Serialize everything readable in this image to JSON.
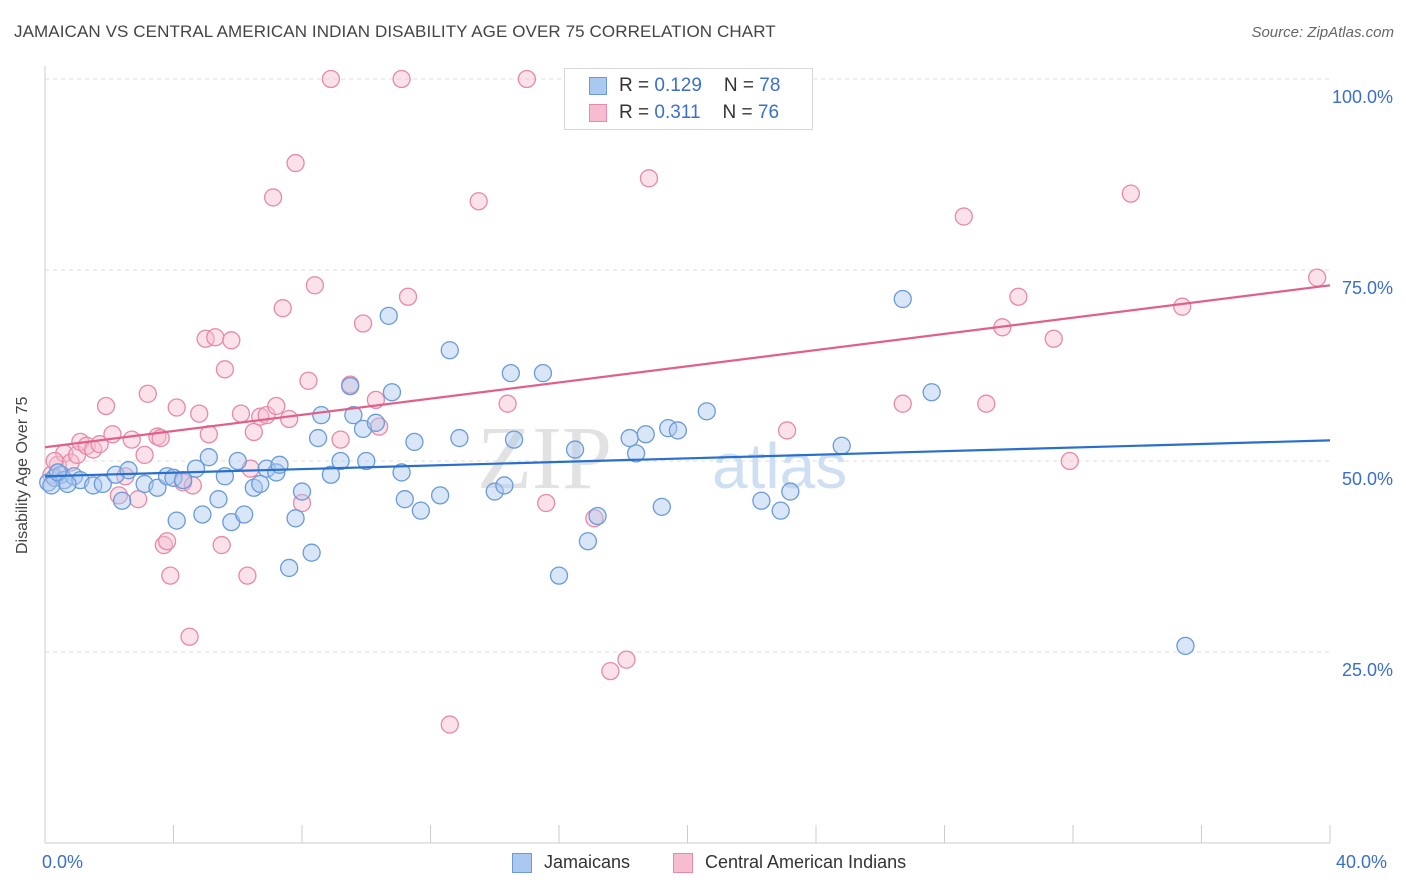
{
  "title": "JAMAICAN VS CENTRAL AMERICAN INDIAN DISABILITY AGE OVER 75 CORRELATION CHART",
  "source": "Source: ZipAtlas.com",
  "watermark": {
    "zip": "ZIP",
    "atlas": "atlas"
  },
  "legend": {
    "jam": {
      "r_label": "R = ",
      "r_value": "0.129",
      "n_label": "N = ",
      "n_value": "78"
    },
    "cai": {
      "r_label": "R = ",
      "r_value": "0.311",
      "n_label": "N = ",
      "n_value": "76"
    }
  },
  "bottom_legend": {
    "jam": "Jamaicans",
    "cai": "Central American Indians"
  },
  "colors": {
    "jam_fill": "#aac8f0",
    "jam_stroke": "#6a9bd8",
    "jam_line": "#2a6fcc",
    "cai_fill": "#f6bcd0",
    "cai_stroke": "#e68aa8",
    "cai_line": "#e0608c",
    "tick_label": "#3a6fc9",
    "grid": "#dcdcdc"
  },
  "chart_data": {
    "type": "scatter",
    "title": "JAMAICAN VS CENTRAL AMERICAN INDIAN DISABILITY AGE OVER 75 CORRELATION CHART",
    "xlabel": "",
    "ylabel": "Disability Age Over 75",
    "xlim": [
      0,
      40
    ],
    "ylim": [
      0,
      100
    ],
    "x_tick_labels": [
      "0.0%",
      "40.0%"
    ],
    "y_ticks": [
      25,
      50,
      75,
      100
    ],
    "y_tick_labels": [
      "25.0%",
      "50.0%",
      "75.0%",
      "100.0%"
    ],
    "grid": true,
    "series": [
      {
        "name": "Jamaicans",
        "r": 0.129,
        "n": 78,
        "trend": {
          "x": [
            0,
            40
          ],
          "y": [
            48.0,
            52.7
          ]
        },
        "points": [
          [
            0.1,
            47.2
          ],
          [
            0.3,
            47.8
          ],
          [
            0.5,
            48.2
          ],
          [
            0.6,
            47.5
          ],
          [
            0.9,
            48.0
          ],
          [
            1.1,
            47.5
          ],
          [
            1.5,
            46.8
          ],
          [
            1.8,
            47.0
          ],
          [
            2.2,
            48.2
          ],
          [
            2.4,
            44.8
          ],
          [
            2.6,
            48.8
          ],
          [
            3.1,
            47.0
          ],
          [
            3.5,
            46.5
          ],
          [
            3.8,
            48.0
          ],
          [
            4.0,
            47.8
          ],
          [
            4.1,
            42.2
          ],
          [
            4.3,
            47.5
          ],
          [
            4.7,
            49.0
          ],
          [
            4.9,
            43.0
          ],
          [
            5.1,
            50.5
          ],
          [
            5.4,
            45.0
          ],
          [
            5.6,
            48.0
          ],
          [
            5.8,
            42.0
          ],
          [
            6.0,
            50.0
          ],
          [
            6.2,
            43.0
          ],
          [
            6.5,
            46.5
          ],
          [
            6.7,
            47.0
          ],
          [
            6.9,
            49.0
          ],
          [
            7.2,
            48.5
          ],
          [
            7.3,
            49.5
          ],
          [
            7.6,
            36.0
          ],
          [
            7.8,
            42.5
          ],
          [
            8.0,
            46.0
          ],
          [
            8.3,
            38.0
          ],
          [
            8.5,
            53.0
          ],
          [
            8.6,
            56.0
          ],
          [
            8.9,
            48.2
          ],
          [
            9.2,
            50.0
          ],
          [
            9.5,
            59.8
          ],
          [
            9.6,
            56.0
          ],
          [
            9.9,
            54.2
          ],
          [
            10.0,
            50.0
          ],
          [
            10.3,
            55.0
          ],
          [
            10.7,
            69.0
          ],
          [
            10.8,
            59.0
          ],
          [
            11.1,
            48.5
          ],
          [
            11.2,
            45.0
          ],
          [
            11.5,
            52.5
          ],
          [
            11.7,
            43.5
          ],
          [
            12.3,
            45.5
          ],
          [
            12.6,
            64.5
          ],
          [
            12.9,
            53.0
          ],
          [
            14.0,
            46.0
          ],
          [
            14.3,
            46.8
          ],
          [
            14.5,
            61.5
          ],
          [
            14.6,
            52.8
          ],
          [
            15.5,
            61.5
          ],
          [
            16.0,
            35.0
          ],
          [
            16.5,
            51.5
          ],
          [
            16.9,
            39.5
          ],
          [
            17.2,
            42.8
          ],
          [
            18.2,
            53.0
          ],
          [
            18.4,
            51.0
          ],
          [
            18.7,
            53.5
          ],
          [
            19.2,
            44.0
          ],
          [
            19.4,
            54.3
          ],
          [
            19.7,
            54.0
          ],
          [
            20.6,
            56.5
          ],
          [
            22.3,
            44.8
          ],
          [
            22.9,
            43.5
          ],
          [
            23.2,
            46.0
          ],
          [
            24.8,
            52.0
          ],
          [
            26.7,
            71.2
          ],
          [
            27.6,
            59.0
          ],
          [
            35.5,
            25.8
          ],
          [
            0.2,
            46.8
          ],
          [
            0.4,
            48.5
          ],
          [
            0.7,
            47.0
          ]
        ]
      },
      {
        "name": "Central American Indians",
        "r": 0.311,
        "n": 76,
        "trend": {
          "x": [
            0,
            40
          ],
          "y": [
            51.8,
            73.0
          ]
        },
        "points": [
          [
            0.2,
            48.2
          ],
          [
            0.4,
            49.5
          ],
          [
            0.6,
            51.0
          ],
          [
            0.8,
            49.8
          ],
          [
            1.0,
            50.8
          ],
          [
            1.1,
            52.5
          ],
          [
            1.3,
            52.0
          ],
          [
            1.5,
            51.5
          ],
          [
            1.7,
            52.2
          ],
          [
            1.9,
            57.2
          ],
          [
            2.1,
            53.5
          ],
          [
            2.3,
            45.5
          ],
          [
            2.5,
            48.0
          ],
          [
            2.7,
            52.8
          ],
          [
            2.9,
            45.0
          ],
          [
            3.1,
            50.8
          ],
          [
            3.2,
            58.8
          ],
          [
            3.5,
            53.2
          ],
          [
            3.6,
            53.0
          ],
          [
            3.7,
            39.0
          ],
          [
            3.8,
            39.5
          ],
          [
            3.9,
            35.0
          ],
          [
            4.1,
            57.0
          ],
          [
            4.3,
            47.2
          ],
          [
            4.5,
            27.0
          ],
          [
            4.6,
            46.8
          ],
          [
            4.8,
            56.2
          ],
          [
            5.0,
            66.0
          ],
          [
            5.1,
            53.5
          ],
          [
            5.3,
            66.2
          ],
          [
            5.5,
            39.0
          ],
          [
            5.6,
            62.0
          ],
          [
            5.8,
            65.8
          ],
          [
            6.1,
            56.2
          ],
          [
            6.3,
            35.0
          ],
          [
            6.4,
            49.0
          ],
          [
            6.5,
            53.8
          ],
          [
            6.7,
            55.8
          ],
          [
            6.9,
            56.0
          ],
          [
            7.1,
            84.5
          ],
          [
            7.2,
            57.2
          ],
          [
            7.4,
            70.0
          ],
          [
            7.6,
            55.5
          ],
          [
            7.8,
            89.0
          ],
          [
            8.0,
            44.5
          ],
          [
            8.2,
            60.5
          ],
          [
            8.4,
            73.0
          ],
          [
            8.9,
            100.0
          ],
          [
            9.2,
            52.8
          ],
          [
            9.5,
            60.0
          ],
          [
            9.9,
            68.0
          ],
          [
            10.3,
            58.0
          ],
          [
            10.4,
            54.5
          ],
          [
            11.1,
            100.0
          ],
          [
            11.3,
            71.5
          ],
          [
            12.6,
            15.5
          ],
          [
            13.5,
            84.0
          ],
          [
            14.4,
            57.5
          ],
          [
            15.0,
            100.0
          ],
          [
            15.6,
            44.5
          ],
          [
            17.1,
            42.5
          ],
          [
            17.6,
            22.5
          ],
          [
            18.1,
            24.0
          ],
          [
            18.8,
            87.0
          ],
          [
            23.1,
            54.0
          ],
          [
            26.7,
            57.5
          ],
          [
            28.6,
            82.0
          ],
          [
            29.3,
            57.5
          ],
          [
            29.8,
            67.5
          ],
          [
            30.3,
            71.5
          ],
          [
            31.4,
            66.0
          ],
          [
            31.9,
            50.0
          ],
          [
            33.8,
            85.0
          ],
          [
            35.4,
            70.2
          ],
          [
            39.6,
            74.0
          ],
          [
            0.3,
            50.0
          ]
        ]
      }
    ]
  }
}
